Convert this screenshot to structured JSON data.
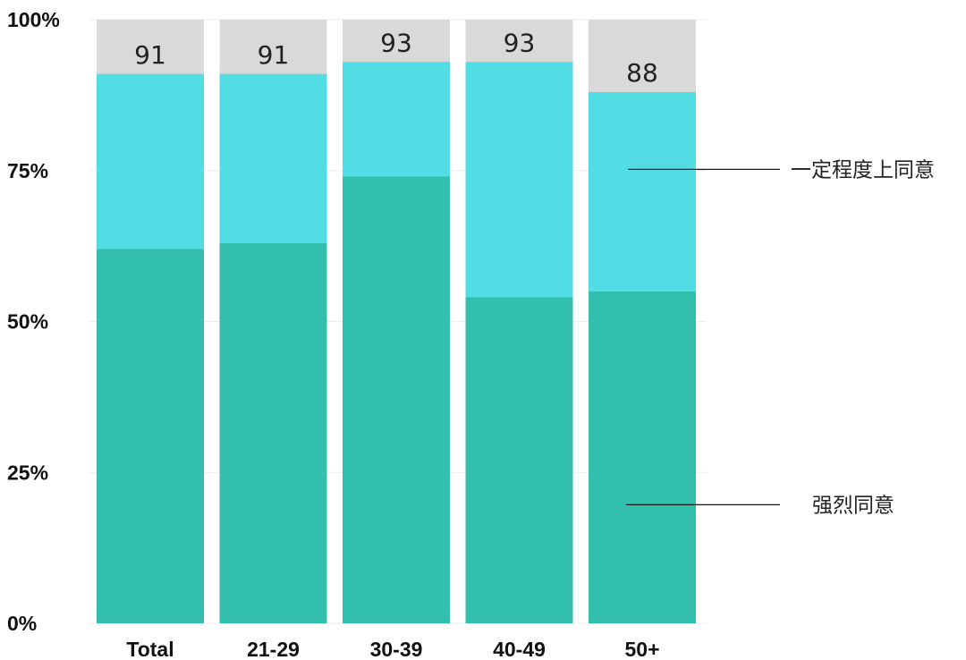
{
  "chart_data": {
    "type": "bar",
    "stacked": true,
    "categories": [
      "Total",
      "21-29",
      "30-39",
      "40-49",
      "50+"
    ],
    "series": [
      {
        "name": "强烈同意",
        "values": [
          62,
          63,
          74,
          54,
          55
        ],
        "color": "#33bfad"
      },
      {
        "name": "一定程度上同意",
        "values": [
          29,
          28,
          19,
          39,
          33
        ],
        "color": "#52dce3"
      }
    ],
    "remainder_color": "#d9d9d9",
    "totals": [
      91,
      91,
      93,
      93,
      88
    ],
    "ylim": [
      0,
      100
    ],
    "yticks": [
      "0%",
      "25%",
      "50%",
      "75%",
      "100%"
    ],
    "grid": true,
    "legend_placement": "right"
  }
}
